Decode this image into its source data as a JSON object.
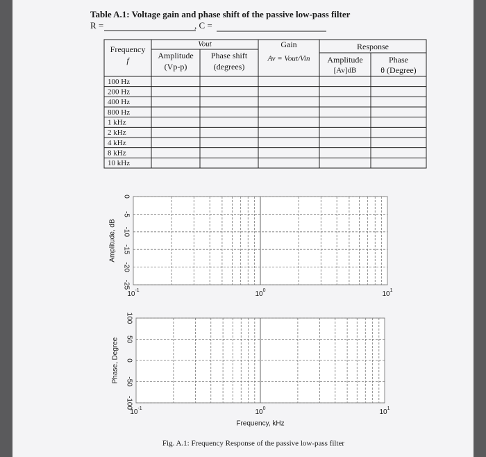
{
  "title": "Table A.1: Voltage gain and phase shift of the passive low-pass filter",
  "fields": [
    "R =",
    ", C ="
  ],
  "table": {
    "header": {
      "frequency": [
        "Frequency",
        "f"
      ],
      "vout": "Vout",
      "amplitude": [
        "Amplitude",
        "(Vp-p)"
      ],
      "phase_shift": [
        "Phase shift",
        "(degrees)"
      ],
      "gain": [
        "Gain",
        "Av = Vout/Vin"
      ],
      "response": "Response",
      "response_amplitude": [
        "Amplitude",
        "[Av]dB"
      ],
      "response_phase": [
        "Phase",
        "θ (Degree)"
      ]
    },
    "rows": [
      "100 Hz",
      "200 Hz",
      "400 Hz",
      "800 Hz",
      "1 kHz",
      "2 kHz",
      "4 kHz",
      "8 kHz",
      "10 kHz"
    ]
  },
  "plots": [
    {
      "ylabel": "Amplitude, dB",
      "yticks": [
        0,
        -5,
        -10,
        -15,
        -20,
        -25
      ],
      "xticks": [
        {
          "base": "10",
          "exponent": "-1"
        },
        {
          "base": "10",
          "exponent": "0"
        },
        {
          "base": "10",
          "exponent": "1"
        }
      ]
    },
    {
      "ylabel": "Phase, Degree",
      "yticks": [
        100,
        50,
        0,
        -50,
        -100
      ],
      "xticks": [
        {
          "base": "10",
          "exponent": "-1"
        },
        {
          "base": "10",
          "exponent": "0"
        },
        {
          "base": "10",
          "exponent": "1"
        }
      ],
      "xlabel": "Frequency, kHz"
    }
  ],
  "caption": "Fig. A.1: Frequency Response of the passive low-pass filter"
}
